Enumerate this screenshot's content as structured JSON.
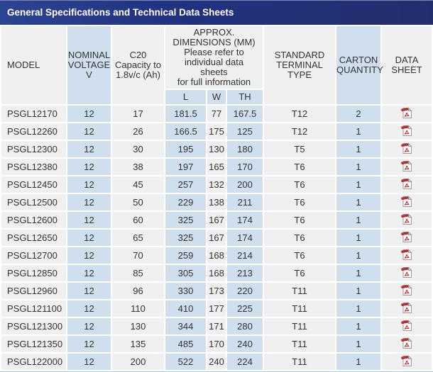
{
  "title_bar": {
    "title": "General Specifications and Technical Data Sheets"
  },
  "colors": {
    "title_bg_left": "#2d4493",
    "title_bg_right": "#252e6d",
    "title_text": "#ffffff",
    "cell_blue": "#cfdfee",
    "cell_gray": "#f0f0f0",
    "bottom_border": "#b3ccdb",
    "text": "#333333",
    "pdf_red": "#cc2222"
  },
  "table": {
    "headers": {
      "model": "MODEL",
      "voltage": "NOMINAL\nVOLTAGE\nV",
      "capacity": "C20\nCapacity to\n1.8v/c (Ah)",
      "dimensions": "APPROX.\nDIMENSIONS (MM)\nPlease refer to\nindividual data\nsheets\nfor full information",
      "l": "L",
      "w": "W",
      "th": "TH",
      "terminal": "STANDARD\nTERMINAL\nTYPE",
      "carton": "CARTON\nQUANTITY",
      "datasheet": "DATA\nSHEET"
    },
    "pdf_icon_name": "pdf-file-icon",
    "rows": [
      {
        "model": "PSGL12170",
        "voltage": "12",
        "capacity": "17",
        "l": "181.5",
        "w": "77",
        "th": "167.5",
        "terminal": "T12",
        "carton": "2"
      },
      {
        "model": "PSGL12260",
        "voltage": "12",
        "capacity": "26",
        "l": "166.5",
        "w": "175",
        "th": "125",
        "terminal": "T12",
        "carton": "1"
      },
      {
        "model": "PSGL12300",
        "voltage": "12",
        "capacity": "30",
        "l": "195",
        "w": "130",
        "th": "180",
        "terminal": "T5",
        "carton": "1"
      },
      {
        "model": "PSGL12380",
        "voltage": "12",
        "capacity": "38",
        "l": "197",
        "w": "165",
        "th": "170",
        "terminal": "T6",
        "carton": "1"
      },
      {
        "model": "PSGL12450",
        "voltage": "12",
        "capacity": "45",
        "l": "257",
        "w": "132",
        "th": "200",
        "terminal": "T6",
        "carton": "1"
      },
      {
        "model": "PSGL12500",
        "voltage": "12",
        "capacity": "50",
        "l": "229",
        "w": "138",
        "th": "211",
        "terminal": "T6",
        "carton": "1"
      },
      {
        "model": "PSGL12600",
        "voltage": "12",
        "capacity": "60",
        "l": "325",
        "w": "167",
        "th": "174",
        "terminal": "T6",
        "carton": "1"
      },
      {
        "model": "PSGL12650",
        "voltage": "12",
        "capacity": "65",
        "l": "325",
        "w": "167",
        "th": "174",
        "terminal": "T6",
        "carton": "1"
      },
      {
        "model": "PSGL12700",
        "voltage": "12",
        "capacity": "70",
        "l": "259",
        "w": "168",
        "th": "214",
        "terminal": "T6",
        "carton": "1"
      },
      {
        "model": "PSGL12850",
        "voltage": "12",
        "capacity": "85",
        "l": "305",
        "w": "168",
        "th": "213",
        "terminal": "T6",
        "carton": "1"
      },
      {
        "model": "PSGL12960",
        "voltage": "12",
        "capacity": "96",
        "l": "330",
        "w": "173",
        "th": "220",
        "terminal": "T11",
        "carton": "1"
      },
      {
        "model": "PSGL121100",
        "voltage": "12",
        "capacity": "110",
        "l": "410",
        "w": "177",
        "th": "225",
        "terminal": "T11",
        "carton": "1"
      },
      {
        "model": "PSGL121300",
        "voltage": "12",
        "capacity": "130",
        "l": "344",
        "w": "171",
        "th": "280",
        "terminal": "T11",
        "carton": "1"
      },
      {
        "model": "PSGL121350",
        "voltage": "12",
        "capacity": "135",
        "l": "485",
        "w": "170",
        "th": "240",
        "terminal": "T11",
        "carton": "1"
      },
      {
        "model": "PSGL122000",
        "voltage": "12",
        "capacity": "200",
        "l": "522",
        "w": "240",
        "th": "224",
        "terminal": "T11",
        "carton": "1"
      }
    ]
  }
}
